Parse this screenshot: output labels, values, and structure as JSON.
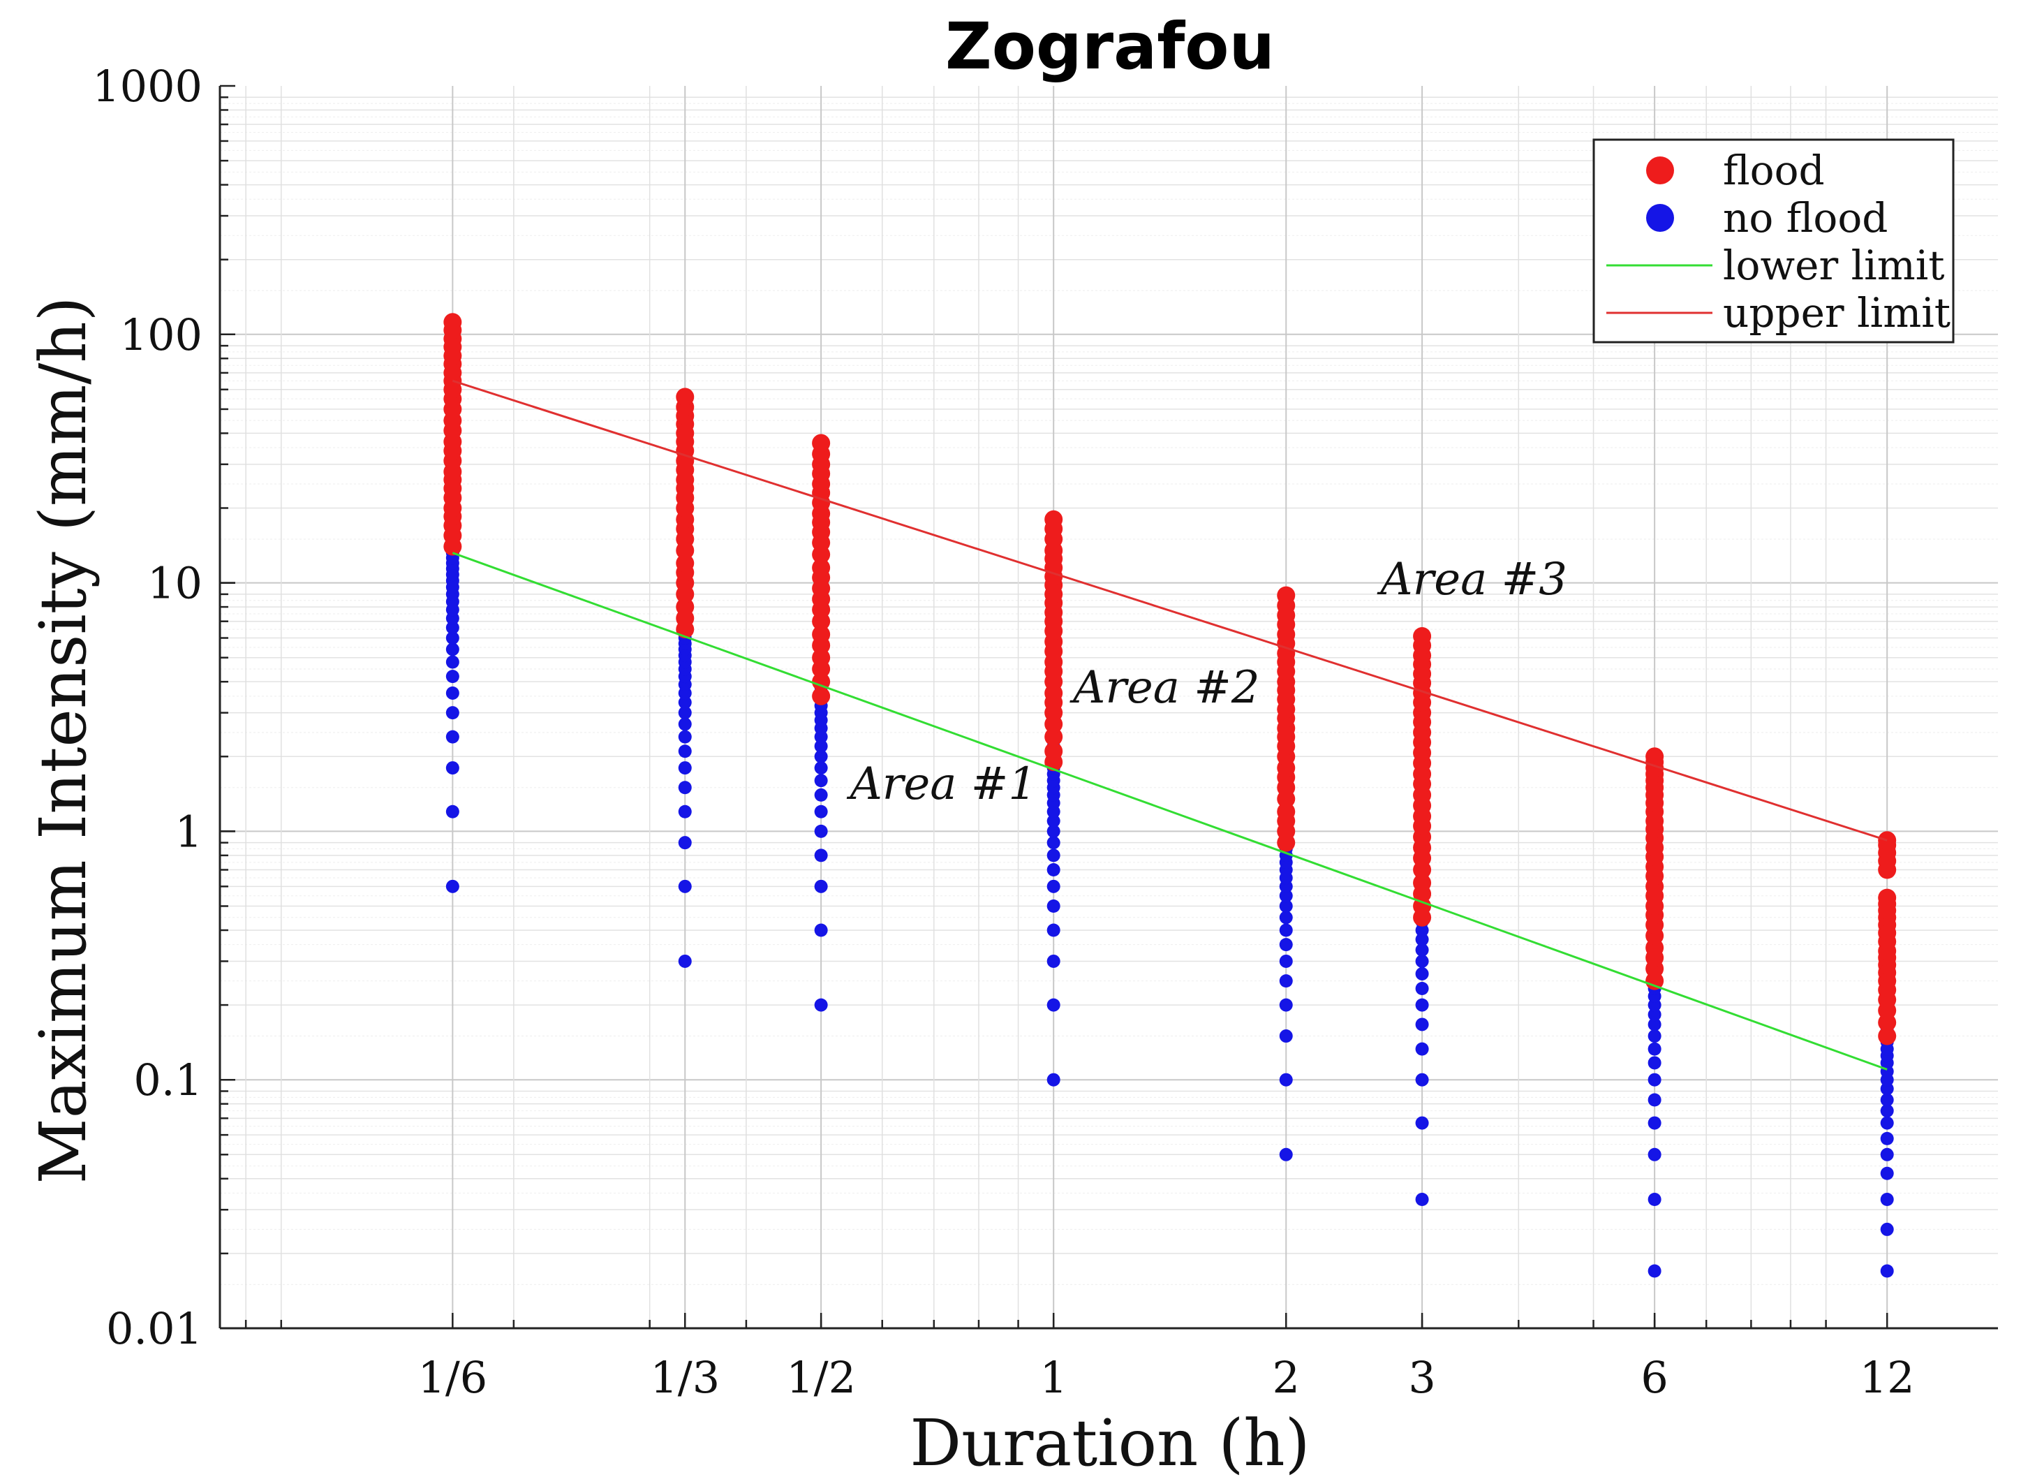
{
  "chart_data": {
    "type": "scatter",
    "title": "Zografou",
    "xlabel": "Duration (h)",
    "ylabel": "Maximum Intensity (mm/h)",
    "xscale": "log",
    "yscale": "log",
    "xlim": [
      0.0833,
      16.7
    ],
    "ylim": [
      0.01,
      1000
    ],
    "grid": true,
    "legend_position": "top-right",
    "x_ticks": [
      {
        "value": 0.1667,
        "label": "1/6"
      },
      {
        "value": 0.3333,
        "label": "1/3"
      },
      {
        "value": 0.5,
        "label": "1/2"
      },
      {
        "value": 1,
        "label": "1"
      },
      {
        "value": 2,
        "label": "2"
      },
      {
        "value": 3,
        "label": "3"
      },
      {
        "value": 6,
        "label": "6"
      },
      {
        "value": 12,
        "label": "12"
      }
    ],
    "y_ticks": [
      {
        "value": 0.01,
        "label": "0.01"
      },
      {
        "value": 0.1,
        "label": "0.1"
      },
      {
        "value": 1,
        "label": "1"
      },
      {
        "value": 10,
        "label": "10"
      },
      {
        "value": 100,
        "label": "100"
      },
      {
        "value": 1000,
        "label": "1000"
      }
    ],
    "legend": [
      {
        "label": "flood",
        "kind": "marker",
        "color": "#ee1c1c"
      },
      {
        "label": "no flood",
        "kind": "marker",
        "color": "#1515e6"
      },
      {
        "label": "lower limit",
        "kind": "line",
        "color": "#33dd33"
      },
      {
        "label": "upper limit",
        "kind": "line",
        "color": "#e03030"
      }
    ],
    "annotations": [
      {
        "text": "Area #1",
        "x": 0.72,
        "y": 1.35
      },
      {
        "text": "Area #2",
        "x": 1.4,
        "y": 3.3
      },
      {
        "text": "Area #3",
        "x": 3.5,
        "y": 9.0
      }
    ],
    "series": [
      {
        "name": "no flood",
        "color": "#1515e6",
        "points": [
          {
            "x": 0.1667,
            "y": [
              0.6,
              1.2,
              1.8,
              2.4,
              3.0,
              3.6,
              4.2,
              4.8,
              5.4,
              6.0,
              6.6,
              7.2,
              7.8,
              8.4,
              9.0,
              9.6,
              10.2,
              10.8,
              11.4,
              12.0,
              12.6,
              13.2,
              14.4,
              15.6,
              16.8,
              18.0,
              19.2,
              21.6,
              24.0,
              26.4,
              28.8,
              31.2,
              33.6,
              36.0,
              38.4,
              40.8,
              43.2,
              45.6
            ]
          },
          {
            "x": 0.3333,
            "y": [
              0.3,
              0.6,
              0.9,
              1.2,
              1.5,
              1.8,
              2.1,
              2.4,
              2.7,
              3.0,
              3.3,
              3.6,
              3.9,
              4.2,
              4.5,
              4.8,
              5.1,
              5.4,
              5.7,
              6.0,
              6.6,
              7.2,
              7.8,
              8.4,
              9.0,
              9.6,
              10.8,
              12.0,
              13.2,
              14.4,
              15.6,
              16.8,
              18.0,
              19.2,
              20.4,
              21.6,
              22.8
            ]
          },
          {
            "x": 0.5,
            "y": [
              0.2,
              0.4,
              0.6,
              0.8,
              1.0,
              1.2,
              1.4,
              1.6,
              1.8,
              2.0,
              2.2,
              2.4,
              2.6,
              2.8,
              3.0,
              3.2,
              3.4,
              3.6,
              3.8,
              4.0,
              4.4,
              4.8,
              5.2,
              5.6,
              6.0,
              6.4,
              6.8,
              7.2,
              8.0,
              8.8,
              9.6,
              10.4,
              11.2,
              12.0,
              12.8,
              13.6,
              14.4,
              15.2
            ]
          },
          {
            "x": 1,
            "y": [
              0.1,
              0.2,
              0.3,
              0.4,
              0.5,
              0.6,
              0.7,
              0.8,
              0.9,
              1.0,
              1.1,
              1.2,
              1.3,
              1.4,
              1.5,
              1.6,
              1.7,
              1.8,
              1.9,
              2.0,
              2.2,
              2.4,
              2.6,
              2.8,
              3.0,
              3.2,
              3.4,
              3.6,
              3.8,
              4.0,
              4.4,
              4.8,
              5.2,
              5.6,
              6.0,
              6.4,
              6.8,
              7.2,
              7.6
            ]
          },
          {
            "x": 2,
            "y": [
              0.05,
              0.1,
              0.15,
              0.2,
              0.25,
              0.3,
              0.35,
              0.4,
              0.45,
              0.5,
              0.55,
              0.6,
              0.65,
              0.7,
              0.75,
              0.8,
              0.85,
              0.9,
              0.95,
              1.0,
              1.1,
              1.2,
              1.3,
              1.4,
              1.5,
              1.6,
              1.7,
              1.8,
              1.9,
              2.0,
              2.2,
              2.4,
              2.6,
              2.8,
              3.0,
              3.2,
              3.4,
              3.6,
              3.8
            ]
          },
          {
            "x": 3,
            "y": [
              0.033,
              0.067,
              0.1,
              0.133,
              0.167,
              0.2,
              0.233,
              0.267,
              0.3,
              0.333,
              0.367,
              0.4,
              0.433,
              0.467,
              0.5,
              0.533,
              0.567,
              0.6,
              0.633,
              0.667,
              0.733,
              0.8,
              0.867,
              0.933,
              1.0,
              1.067,
              1.133,
              1.2,
              1.267,
              1.333,
              1.467,
              1.6,
              1.733,
              1.867,
              2.0,
              2.133,
              2.267,
              2.4,
              2.533
            ]
          },
          {
            "x": 6,
            "y": [
              0.017,
              0.033,
              0.05,
              0.067,
              0.083,
              0.1,
              0.117,
              0.133,
              0.15,
              0.167,
              0.183,
              0.2,
              0.217,
              0.233,
              0.25,
              0.267,
              0.283,
              0.3,
              0.317,
              0.333,
              0.35,
              0.367,
              0.4,
              0.433,
              0.467,
              0.5,
              0.533,
              0.567,
              0.6,
              0.633,
              0.667,
              0.733,
              0.8,
              0.867,
              0.933,
              1.0,
              1.067,
              1.133,
              1.2,
              1.267
            ]
          },
          {
            "x": 12,
            "y": [
              0.017,
              0.025,
              0.033,
              0.042,
              0.05,
              0.058,
              0.067,
              0.075,
              0.083,
              0.092,
              0.1,
              0.108,
              0.117,
              0.125,
              0.133,
              0.142,
              0.15,
              0.158,
              0.167,
              0.183,
              0.2,
              0.217,
              0.233,
              0.25,
              0.267,
              0.283,
              0.3,
              0.317,
              0.333,
              0.367,
              0.4,
              0.433,
              0.467,
              0.5,
              0.533
            ]
          }
        ]
      },
      {
        "name": "flood",
        "color": "#ee1c1c",
        "points": [
          {
            "x": 0.1667,
            "y": [
              14,
              15.5,
              17,
              18.5,
              20,
              22,
              24,
              26,
              28,
              31,
              34,
              37,
              41,
              45,
              50,
              55,
              60,
              65,
              70,
              76,
              82,
              89,
              96,
              104,
              112
            ]
          },
          {
            "x": 0.3333,
            "y": [
              6.5,
              7.2,
              8,
              9,
              10,
              11,
              12,
              13.5,
              15,
              16.5,
              18,
              20,
              22,
              24,
              26,
              28.5,
              31,
              34,
              37,
              40,
              43.5,
              47,
              51,
              56
            ]
          },
          {
            "x": 0.5,
            "y": [
              3.5,
              4,
              4.5,
              5,
              5.6,
              6.2,
              7,
              7.8,
              8.6,
              9.5,
              10.5,
              11.5,
              13,
              14.5,
              16,
              17.5,
              19,
              21,
              23,
              25,
              27.5,
              30,
              33,
              36.5
            ]
          },
          {
            "x": 1,
            "y": [
              1.9,
              2.1,
              2.4,
              2.7,
              3,
              3.3,
              3.6,
              4,
              4.4,
              4.8,
              5.3,
              5.8,
              6.4,
              7,
              7.6,
              8.3,
              9,
              9.8,
              10.6,
              11.5,
              12.5,
              13.5,
              15,
              16.5,
              18
            ]
          },
          {
            "x": 2,
            "y": [
              0.9,
              1,
              1.1,
              1.2,
              1.35,
              1.5,
              1.65,
              1.8,
              2,
              2.2,
              2.4,
              2.6,
              2.85,
              3.1,
              3.4,
              3.7,
              4,
              4.4,
              4.8,
              5.2,
              5.7,
              6.2,
              6.8,
              7.4,
              8.1,
              8.9
            ]
          },
          {
            "x": 3,
            "y": [
              0.45,
              0.5,
              0.56,
              0.62,
              0.7,
              0.78,
              0.86,
              0.95,
              1.05,
              1.15,
              1.27,
              1.4,
              1.55,
              1.7,
              1.88,
              2.07,
              2.28,
              2.5,
              2.75,
              3,
              3.3,
              3.6,
              3.95,
              4.3,
              4.7,
              5.1,
              5.6,
              6.1
            ]
          },
          {
            "x": 6,
            "y": [
              0.25,
              0.28,
              0.31,
              0.34,
              0.38,
              0.42,
              0.46,
              0.5,
              0.55,
              0.6,
              0.66,
              0.72,
              0.79,
              0.86,
              0.94,
              1.02,
              1.1,
              1.2,
              1.3,
              1.4,
              1.5,
              1.6,
              1.7,
              1.8,
              1.9,
              2
            ]
          },
          {
            "x": 12,
            "y": [
              0.15,
              0.17,
              0.19,
              0.21,
              0.23,
              0.25,
              0.27,
              0.29,
              0.31,
              0.33,
              0.36,
              0.39,
              0.42,
              0.45,
              0.48,
              0.51,
              0.54,
              0.7,
              0.76,
              0.82,
              0.88,
              0.92
            ]
          }
        ]
      }
    ],
    "lines": [
      {
        "name": "upper limit",
        "color": "#e03030",
        "points": [
          [
            0.1667,
            65
          ],
          [
            12,
            0.92
          ]
        ]
      },
      {
        "name": "lower limit",
        "color": "#33dd33",
        "points": [
          [
            0.1667,
            13.2
          ],
          [
            12,
            0.11
          ]
        ]
      }
    ]
  }
}
